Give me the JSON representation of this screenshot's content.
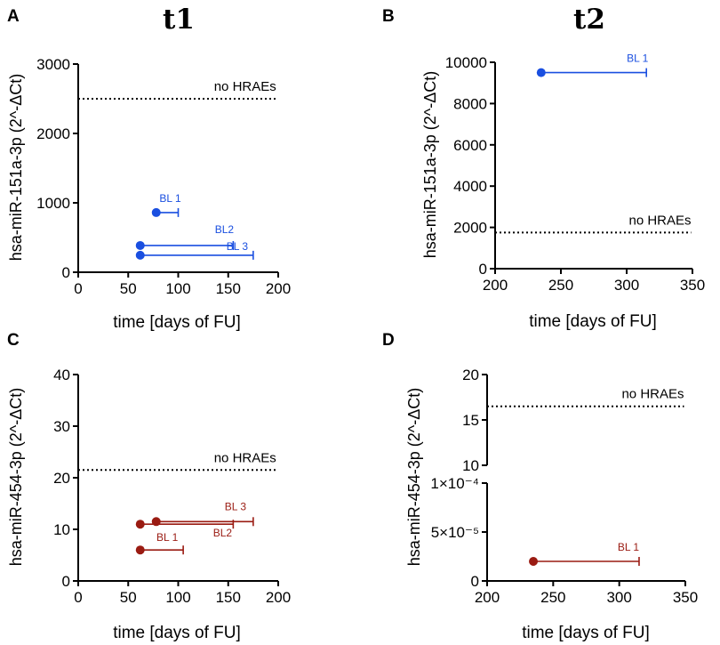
{
  "column_titles": [
    "t1",
    "t2"
  ],
  "chart_data": [
    {
      "panel": "A",
      "type": "scatter",
      "title": "t1",
      "xlabel": "time [days of FU]",
      "ylabel": "hsa-miR-151a-3p (2^-ΔCt)",
      "xlim": [
        0,
        200
      ],
      "ylim": [
        0,
        3000
      ],
      "xticks": [
        0,
        50,
        100,
        150,
        200
      ],
      "yticks": [
        0,
        1000,
        2000,
        3000
      ],
      "color": "#1a4fe0",
      "threshold": {
        "label": "no HRAEs",
        "value": 2500,
        "x_range": [
          0,
          198
        ]
      },
      "series": [
        {
          "name": "BL 1",
          "x_start": 78,
          "x_end": 100,
          "value": 860
        },
        {
          "name": "BL2",
          "x_start": 62,
          "x_end": 155,
          "value": 385
        },
        {
          "name": "BL 3",
          "x_start": 62,
          "x_end": 175,
          "value": 245
        }
      ]
    },
    {
      "panel": "B",
      "type": "scatter",
      "title": "t2",
      "xlabel": "time [days of FU]",
      "ylabel": "hsa-miR-151a-3p (2^-ΔCt)",
      "xlim": [
        200,
        350
      ],
      "ylim": [
        0,
        10000
      ],
      "xticks": [
        200,
        250,
        300,
        350
      ],
      "yticks": [
        0,
        2000,
        4000,
        6000,
        8000,
        10000
      ],
      "color": "#1a4fe0",
      "threshold": {
        "label": "no HRAEs",
        "value": 1750,
        "x_range": [
          200,
          349
        ]
      },
      "series": [
        {
          "name": "BL 1",
          "x_start": 235,
          "x_end": 315,
          "value": 9500
        }
      ]
    },
    {
      "panel": "C",
      "type": "scatter",
      "title": "",
      "xlabel": "time [days of FU]",
      "ylabel": "hsa-miR-454-3p (2^-ΔCt)",
      "xlim": [
        0,
        200
      ],
      "ylim": [
        0,
        40
      ],
      "xticks": [
        0,
        50,
        100,
        150,
        200
      ],
      "yticks": [
        0,
        10,
        20,
        30,
        40
      ],
      "color": "#9a1b12",
      "threshold": {
        "label": "no HRAEs",
        "value": 21.5,
        "x_range": [
          0,
          198
        ]
      },
      "series": [
        {
          "name": "BL 3",
          "x_start": 78,
          "x_end": 175,
          "value": 11.5
        },
        {
          "name": "BL2",
          "x_start": 62,
          "x_end": 155,
          "value": 11
        },
        {
          "name": "BL 1",
          "x_start": 62,
          "x_end": 105,
          "value": 6
        }
      ]
    },
    {
      "panel": "D",
      "type": "scatter",
      "title": "",
      "xlabel": "time [days of FU]",
      "ylabel": "hsa-miR-454-3p (2^-ΔCt)",
      "xlim": [
        200,
        350
      ],
      "xticks": [
        200,
        250,
        300,
        350
      ],
      "broken_y_axis": {
        "upper": {
          "ylim": [
            10,
            20
          ],
          "yticks": [
            10,
            15,
            20
          ]
        },
        "lower": {
          "ylim": [
            0,
            0.0001
          ],
          "yticks": [
            0,
            5e-05,
            0.0001
          ],
          "tick_labels": [
            "0",
            "5×10⁻⁵",
            "1×10⁻⁴"
          ]
        }
      },
      "color": "#9a1b12",
      "threshold": {
        "label": "no HRAEs",
        "value": 16.5,
        "x_range": [
          200,
          349
        ]
      },
      "series": [
        {
          "name": "BL 1",
          "x_start": 235,
          "x_end": 315,
          "value": 2e-05
        }
      ]
    }
  ]
}
